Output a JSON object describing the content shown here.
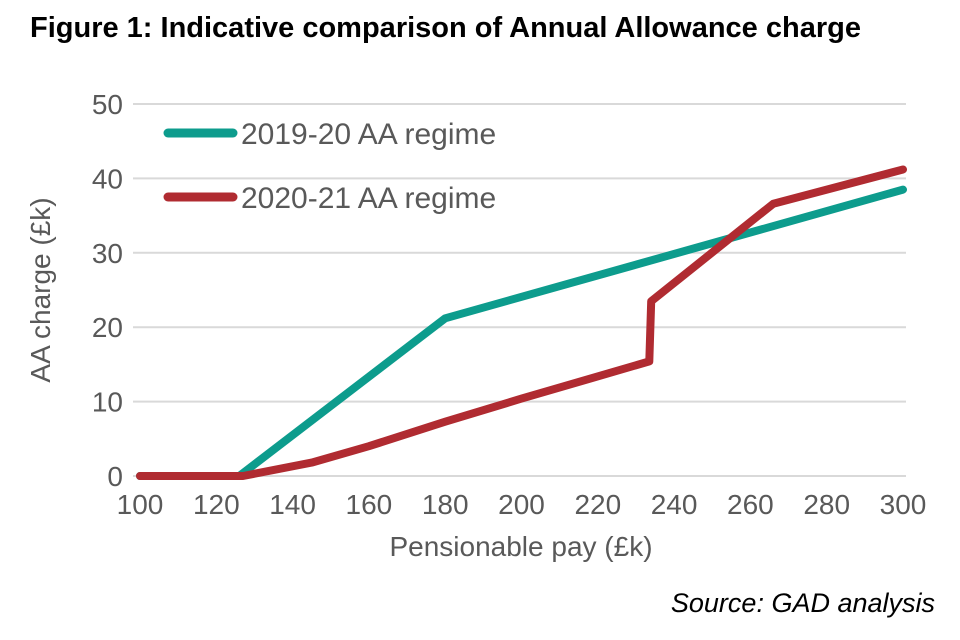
{
  "figure": {
    "title": "Figure 1: Indicative comparison of Annual Allowance charge",
    "source": "Source: GAD analysis"
  },
  "chart_data": {
    "type": "line",
    "title": "Figure 1: Indicative comparison of Annual Allowance charge",
    "xlabel": "Pensionable pay (£k)",
    "ylabel": "AA charge (£k)",
    "xlim": [
      100,
      300
    ],
    "ylim": [
      0,
      50
    ],
    "xticks": [
      100,
      120,
      140,
      160,
      180,
      200,
      220,
      240,
      260,
      280,
      300
    ],
    "yticks": [
      0,
      10,
      20,
      30,
      40,
      50
    ],
    "grid": "horizontal-only",
    "legend_position": "inside-top-left",
    "colors": {
      "teal": "#0d9c8d",
      "red": "#b02b31",
      "gridline": "#d9d9d9",
      "axis_text": "#595959"
    },
    "series": [
      {
        "name": "2019-20 AA regime",
        "color": "#0d9c8d",
        "points": [
          [
            100,
            0
          ],
          [
            126,
            0
          ],
          [
            180,
            21.2
          ],
          [
            300,
            38.5
          ]
        ]
      },
      {
        "name": "2020-21 AA regime",
        "color": "#b02b31",
        "points": [
          [
            100,
            0
          ],
          [
            127,
            0
          ],
          [
            145,
            1.8
          ],
          [
            160,
            4
          ],
          [
            180,
            7.3
          ],
          [
            200,
            10.4
          ],
          [
            233.5,
            15.4
          ],
          [
            234,
            23.5
          ],
          [
            266,
            36.6
          ],
          [
            300,
            41.2
          ]
        ]
      }
    ],
    "source": "Source: GAD analysis"
  }
}
